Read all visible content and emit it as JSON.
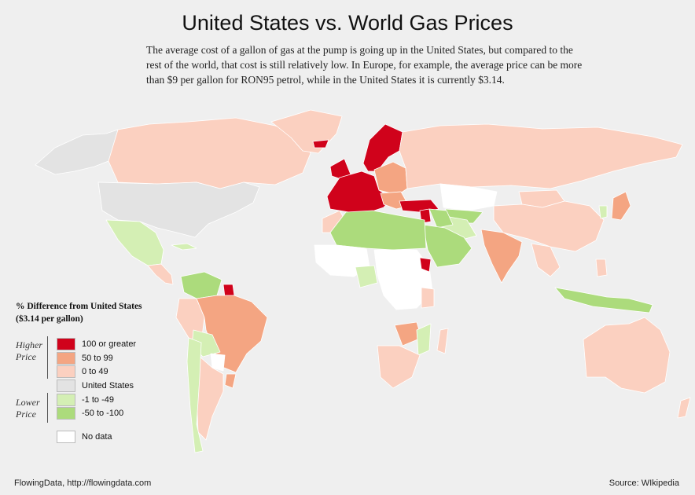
{
  "title": "United States vs. World Gas Prices",
  "intro": "The average cost of a gallon of gas at the pump is going up in the United States, but compared to the rest of the world, that cost is still relatively low. In Europe, for example, the average price can be more than $9 per gallon for RON95 petrol, while in the United States it is currently $3.14.",
  "legend": {
    "title_line1": "% Difference from United States",
    "title_line2": "($3.14 per gallon)",
    "higher_line1": "Higher",
    "higher_line2": "Price",
    "lower_line1": "Lower",
    "lower_line2": "Price",
    "items": [
      {
        "label": "100 or greater",
        "color": "#d0021b"
      },
      {
        "label": "50 to 99",
        "color": "#f4a582"
      },
      {
        "label": "0 to 49",
        "color": "#fbd0c0"
      },
      {
        "label": "United States",
        "color": "#e3e3e3"
      },
      {
        "label": "-1 to -49",
        "color": "#d4efb4"
      },
      {
        "label": "-50 to -100",
        "color": "#acdb7c"
      },
      {
        "label": "No data",
        "color": "#ffffff"
      }
    ]
  },
  "footer": {
    "credit": "FlowingData, http://flowingdata.com",
    "source": "Source: WIkipedia"
  },
  "colors": {
    "background": "#efefef",
    "country_border": "#ffffff"
  }
}
